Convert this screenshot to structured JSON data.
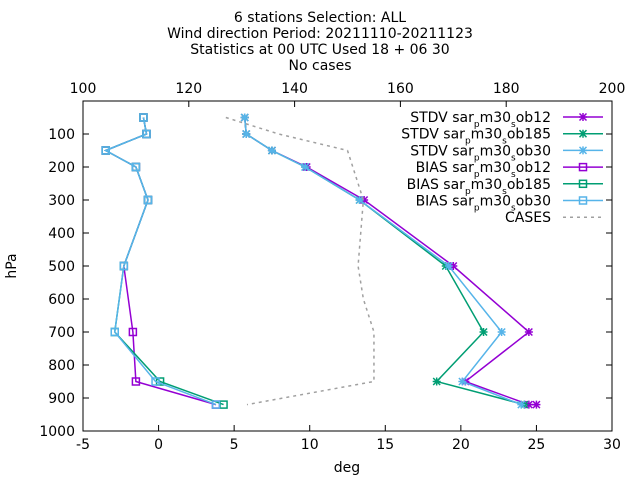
{
  "chart_data": {
    "type": "line",
    "title_lines": [
      "6 stations Selection: ALL",
      "Wind direction  Period: 20211110-20211123",
      "Statistics at 00 UTC  Used 18 + 06 30",
      "No cases"
    ],
    "xlabel": "deg",
    "ylabel": "hPa",
    "xlim": [
      -5,
      30
    ],
    "ylim": [
      1000,
      0
    ],
    "x2lim": [
      100,
      200
    ],
    "x_ticks": [
      "-5",
      "0",
      "5",
      "10",
      "15",
      "20",
      "25",
      "30"
    ],
    "x2_ticks": [
      "100",
      "120",
      "140",
      "160",
      "180",
      "200"
    ],
    "y_ticks": [
      "100",
      "200",
      "300",
      "400",
      "500",
      "600",
      "700",
      "800",
      "900",
      "1000"
    ],
    "grid": false,
    "legend_position": "top-right",
    "series": [
      {
        "name": "STDV sar_pm30_sob12",
        "name_parts": [
          "STDV sar",
          "p",
          "m30",
          "s",
          "ob12"
        ],
        "color": "#9400d3",
        "marker": "star",
        "axis": "x1",
        "points": [
          [
            5.7,
            50
          ],
          [
            5.8,
            100
          ],
          [
            7.5,
            150
          ],
          [
            9.8,
            200
          ],
          [
            13.6,
            300
          ],
          [
            19.5,
            500
          ],
          [
            24.5,
            700
          ],
          [
            20.3,
            850
          ],
          [
            24.5,
            920
          ],
          [
            25.0,
            920
          ]
        ]
      },
      {
        "name": "STDV sar_pm30_sob185",
        "name_parts": [
          "STDV sar",
          "p",
          "m30",
          "s",
          "ob185"
        ],
        "color": "#009e73",
        "marker": "star",
        "axis": "x1",
        "points": [
          [
            5.7,
            50
          ],
          [
            5.8,
            100
          ],
          [
            7.5,
            150
          ],
          [
            9.7,
            200
          ],
          [
            13.3,
            300
          ],
          [
            19.0,
            500
          ],
          [
            21.5,
            700
          ],
          [
            18.4,
            850
          ],
          [
            24.2,
            920
          ]
        ]
      },
      {
        "name": "STDV sar_pm30_sob30",
        "name_parts": [
          "STDV sar",
          "p",
          "m30",
          "s",
          "ob30"
        ],
        "color": "#56b4e9",
        "marker": "star",
        "axis": "x1",
        "points": [
          [
            5.7,
            50
          ],
          [
            5.8,
            100
          ],
          [
            7.5,
            150
          ],
          [
            9.7,
            200
          ],
          [
            13.3,
            300
          ],
          [
            19.2,
            500
          ],
          [
            22.7,
            700
          ],
          [
            20.1,
            850
          ],
          [
            24.0,
            920
          ]
        ]
      },
      {
        "name": "BIAS sar_pm30_sob12",
        "name_parts": [
          "BIAS sar",
          "p",
          "m30",
          "s",
          "ob12"
        ],
        "color": "#9400d3",
        "marker": "square",
        "axis": "x1",
        "points": [
          [
            -1.0,
            50
          ],
          [
            -0.8,
            100
          ],
          [
            -3.5,
            150
          ],
          [
            -1.5,
            200
          ],
          [
            -0.7,
            300
          ],
          [
            -2.3,
            500
          ],
          [
            -1.7,
            700
          ],
          [
            -1.5,
            850
          ],
          [
            3.8,
            920
          ]
        ]
      },
      {
        "name": "BIAS sar_pm30_sob185",
        "name_parts": [
          "BIAS sar",
          "p",
          "m30",
          "s",
          "ob185"
        ],
        "color": "#009e73",
        "marker": "square",
        "axis": "x1",
        "points": [
          [
            -1.0,
            50
          ],
          [
            -0.8,
            100
          ],
          [
            -3.5,
            150
          ],
          [
            -1.5,
            200
          ],
          [
            -0.7,
            300
          ],
          [
            -2.3,
            500
          ],
          [
            -2.9,
            700
          ],
          [
            0.1,
            850
          ],
          [
            4.3,
            920
          ]
        ]
      },
      {
        "name": "BIAS sar_pm30_sob30",
        "name_parts": [
          "BIAS sar",
          "p",
          "m30",
          "s",
          "ob30"
        ],
        "color": "#56b4e9",
        "marker": "square",
        "axis": "x1",
        "points": [
          [
            -1.0,
            50
          ],
          [
            -0.8,
            100
          ],
          [
            -3.5,
            150
          ],
          [
            -1.5,
            200
          ],
          [
            -0.7,
            300
          ],
          [
            -2.3,
            500
          ],
          [
            -2.9,
            700
          ],
          [
            -0.2,
            850
          ],
          [
            3.8,
            920
          ]
        ]
      },
      {
        "name": "CASES",
        "name_parts": [
          "CASES"
        ],
        "color": "#a0a0a0",
        "marker": "none",
        "dashed": true,
        "axis": "x2",
        "points": [
          [
            127,
            50
          ],
          [
            137,
            100
          ],
          [
            150,
            150
          ],
          [
            153,
            300
          ],
          [
            152,
            500
          ],
          [
            153,
            600
          ],
          [
            155,
            700
          ],
          [
            155,
            850
          ],
          [
            131,
            920
          ]
        ]
      }
    ]
  }
}
